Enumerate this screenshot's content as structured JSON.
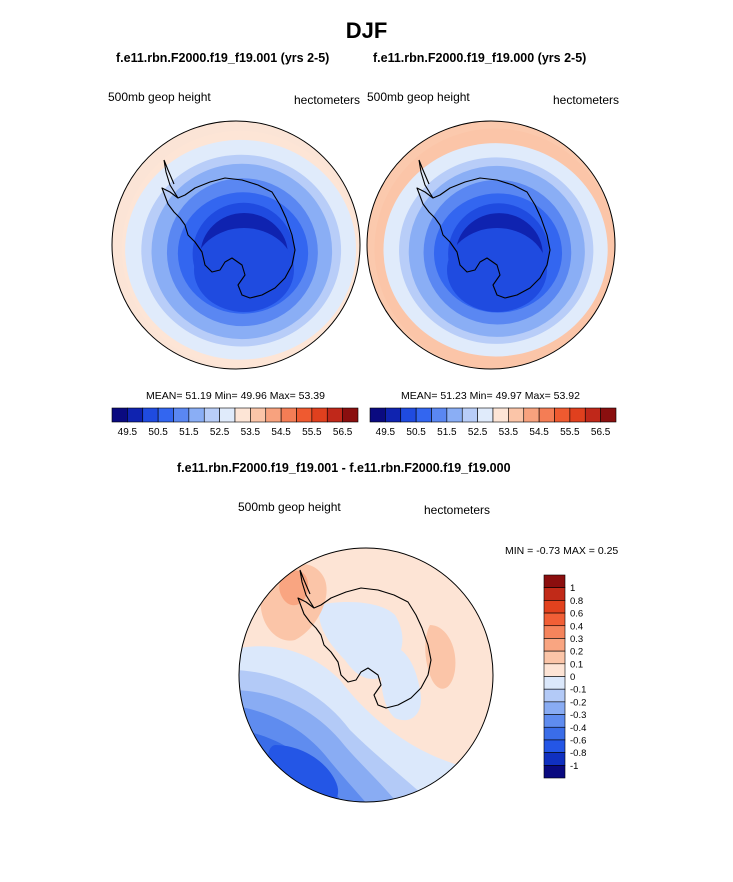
{
  "page": {
    "title": "DJF"
  },
  "colors": {
    "abs_scale": [
      "#0a0a80",
      "#0f23b0",
      "#1f4be0",
      "#3366f0",
      "#5a87f2",
      "#8aaef5",
      "#b8cdf8",
      "#e0ebfb",
      "#fde5d6",
      "#fbc5a8",
      "#f8a27e",
      "#f47d55",
      "#ef5a30",
      "#e0401e",
      "#c0281a",
      "#8a0f0f"
    ],
    "diff_scale": [
      "#0a0a80",
      "#1030c0",
      "#2456e6",
      "#3a6de8",
      "#5f8cef",
      "#89acf3",
      "#b3caf7",
      "#dbe8fb",
      "#fde4d5",
      "#fbc5a8",
      "#f9a581",
      "#f5845c",
      "#f15f36",
      "#e2421e",
      "#c12a18",
      "#8b0e0e"
    ],
    "land_outline": "#000000"
  },
  "chart_data": [
    {
      "type": "heatmap",
      "projection": "polar-stereographic-south",
      "title": "f.e11.rbn.F2000.f19_f19.001 (yrs 2-5)",
      "left_label": "500mb geop height",
      "right_label": "hectometers",
      "stats": {
        "mean_label": "MEAN=",
        "mean": "51.19",
        "min_label": "Min=",
        "min": "49.96",
        "max_label": "Max=",
        "max": "53.39"
      },
      "colorbar": {
        "ticks": [
          "49.5",
          "50.5",
          "51.5",
          "52.5",
          "53.5",
          "54.5",
          "55.5",
          "56.5"
        ]
      },
      "rings": [
        {
          "value": 53.0,
          "bin": 8
        },
        {
          "value": 52.75,
          "bin": 7
        },
        {
          "value": 52.25,
          "bin": 6
        },
        {
          "value": 51.75,
          "bin": 5
        },
        {
          "value": 51.25,
          "bin": 4
        },
        {
          "value": 50.75,
          "bin": 3
        },
        {
          "value": 50.25,
          "bin": 2
        },
        {
          "value": 49.9,
          "bin": 1
        }
      ]
    },
    {
      "type": "heatmap",
      "projection": "polar-stereographic-south",
      "title": "f.e11.rbn.F2000.f19_f19.000 (yrs 2-5)",
      "left_label": "500mb geop height",
      "right_label": "hectometers",
      "stats": {
        "mean_label": "MEAN=",
        "mean": "51.23",
        "min_label": "Min=",
        "min": "49.97",
        "max_label": "Max=",
        "max": "53.92"
      },
      "colorbar": {
        "ticks": [
          "49.5",
          "50.5",
          "51.5",
          "52.5",
          "53.5",
          "54.5",
          "55.5",
          "56.5"
        ]
      },
      "rings": [
        {
          "value": 53.25,
          "bin": 9
        },
        {
          "value": 52.75,
          "bin": 7
        },
        {
          "value": 52.25,
          "bin": 6
        },
        {
          "value": 51.75,
          "bin": 5
        },
        {
          "value": 51.25,
          "bin": 4
        },
        {
          "value": 50.75,
          "bin": 3
        },
        {
          "value": 50.25,
          "bin": 2
        },
        {
          "value": 49.9,
          "bin": 1
        }
      ]
    },
    {
      "type": "heatmap",
      "projection": "polar-stereographic-south",
      "title": "f.e11.rbn.F2000.f19_f19.001 - f.e11.rbn.F2000.f19_f19.000",
      "left_label": "500mb geop height",
      "right_label": "hectometers",
      "stats": {
        "min_label": "MIN =",
        "min": "-0.73",
        "max_label": "MAX =",
        "max": "0.25"
      },
      "colorbar": {
        "ticks": [
          "1",
          "0.8",
          "0.6",
          "0.4",
          "0.3",
          "0.2",
          "0.1",
          "0",
          "-0.1",
          "-0.2",
          "-0.3",
          "-0.4",
          "-0.6",
          "-0.8",
          "-1"
        ]
      }
    }
  ]
}
